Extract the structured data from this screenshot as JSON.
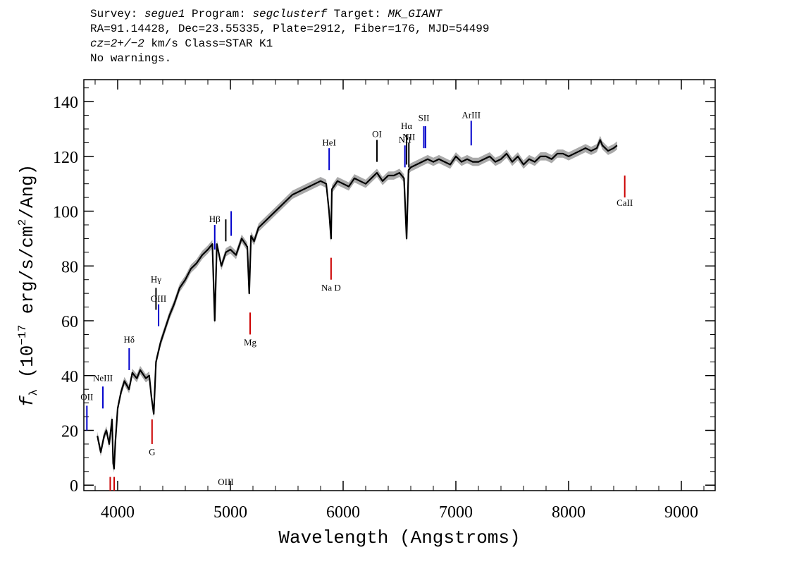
{
  "header": {
    "line1": {
      "survey_label": "Survey: ",
      "survey": "segue1",
      "program_label": " Program: ",
      "program": "segclusterf",
      "target_label": " Target: ",
      "target": "MK_GIANT"
    },
    "line2": "RA=91.14428, Dec=23.55335, Plate=2912, Fiber=176, MJD=54499",
    "line3": {
      "cz": "cz=2+/−2",
      "rest": " km/s Class=STAR K1"
    },
    "line4": "No warnings."
  },
  "chart_data": {
    "type": "line",
    "xlabel": "Wavelength (Angstroms)",
    "ylabel": "f_λ (10^-17 erg/s/cm^2/Ang)",
    "ylabel_parts": {
      "f": "f",
      "sub": "λ",
      "a": " (10",
      "exp": "−17",
      "b": " erg/s/cm",
      "exp2": "2",
      "c": "/Ang)"
    },
    "xlim": [
      3700,
      9300
    ],
    "ylim": [
      -2,
      148
    ],
    "xticks": [
      4000,
      5000,
      6000,
      7000,
      8000,
      9000
    ],
    "yticks": [
      0,
      20,
      40,
      60,
      80,
      100,
      120,
      140
    ],
    "series": [
      {
        "color": "#000000",
        "error_band_color": "#aaaaaa",
        "x": [
          3820,
          3850,
          3880,
          3900,
          3925,
          3950,
          3960,
          3968,
          3980,
          4000,
          4030,
          4060,
          4101,
          4130,
          4170,
          4200,
          4250,
          4280,
          4300,
          4320,
          4340,
          4380,
          4420,
          4460,
          4500,
          4550,
          4600,
          4650,
          4700,
          4750,
          4800,
          4840,
          4861,
          4880,
          4920,
          4960,
          5000,
          5050,
          5100,
          5150,
          5167,
          5183,
          5210,
          5250,
          5300,
          5350,
          5400,
          5450,
          5500,
          5550,
          5600,
          5650,
          5700,
          5750,
          5800,
          5850,
          5875,
          5893,
          5900,
          5950,
          6000,
          6050,
          6100,
          6150,
          6200,
          6250,
          6300,
          6350,
          6400,
          6450,
          6500,
          6540,
          6563,
          6580,
          6600,
          6650,
          6700,
          6750,
          6800,
          6850,
          6900,
          6950,
          7000,
          7050,
          7100,
          7150,
          7200,
          7250,
          7300,
          7350,
          7400,
          7450,
          7500,
          7550,
          7600,
          7650,
          7700,
          7750,
          7800,
          7850,
          7900,
          7950,
          8000,
          8050,
          8100,
          8150,
          8200,
          8250,
          8280,
          8300,
          8350,
          8400,
          8430
        ],
        "y": [
          18,
          12,
          18,
          20,
          15,
          24,
          8,
          6,
          16,
          28,
          34,
          38,
          35,
          41,
          39,
          42,
          39,
          40,
          32,
          26,
          45,
          52,
          57,
          62,
          66,
          72,
          75,
          79,
          81,
          84,
          86,
          88,
          60,
          88,
          80,
          85,
          86,
          84,
          90,
          87,
          70,
          91,
          89,
          94,
          96,
          98,
          100,
          102,
          104,
          106,
          107,
          108,
          109,
          110,
          111,
          110,
          100,
          90,
          108,
          111,
          110,
          109,
          112,
          111,
          110,
          112,
          114,
          111,
          113,
          113,
          114,
          112,
          90,
          115,
          116,
          117,
          118,
          119,
          118,
          119,
          118,
          117,
          120,
          118,
          119,
          118,
          118,
          119,
          120,
          118,
          119,
          121,
          118,
          120,
          117,
          119,
          118,
          120,
          120,
          119,
          121,
          121,
          120,
          121,
          122,
          123,
          122,
          123,
          126,
          124,
          122,
          123,
          124
        ]
      }
    ],
    "lines": [
      {
        "label": "OII",
        "wavelength": 3727,
        "color": "#0000cc",
        "ymin": 20,
        "ymax": 29,
        "label_y": 31
      },
      {
        "label": "NeIII",
        "wavelength": 3869,
        "color": "#0000cc",
        "ymin": 28,
        "ymax": 36,
        "label_y": 38
      },
      {
        "label": "Hδ",
        "wavelength": 4102,
        "color": "#0000cc",
        "ymin": 42,
        "ymax": 50,
        "label_y": 52
      },
      {
        "label": "Hγ",
        "wavelength": 4340,
        "color": "#000000",
        "ymin": 64,
        "ymax": 72,
        "label_y": 74
      },
      {
        "label": "OIII",
        "wavelength": 4363,
        "color": "#0000cc",
        "ymin": 58,
        "ymax": 66,
        "label_y": 67
      },
      {
        "label": "Hβ",
        "wavelength": 4861,
        "color": "#0000cc",
        "ymin": 86,
        "ymax": 95,
        "label_y": 96
      },
      {
        "label": "OIII",
        "wavelength": 4959,
        "color": "#000000",
        "ymin": 89,
        "ymax": 97,
        "label_y": 0
      },
      {
        "label": "",
        "wavelength": 5007,
        "color": "#0000cc",
        "ymin": 91,
        "ymax": 100,
        "label_y": 102
      },
      {
        "label": "HeI",
        "wavelength": 5876,
        "color": "#0000cc",
        "ymin": 115,
        "ymax": 123,
        "label_y": 124
      },
      {
        "label": "OI",
        "wavelength": 6300,
        "color": "#000000",
        "ymin": 118,
        "ymax": 126,
        "label_y": 127
      },
      {
        "label": "NII",
        "wavelength": 6548,
        "color": "#0000cc",
        "ymin": 116,
        "ymax": 124,
        "label_y": 125
      },
      {
        "label": "Hα",
        "wavelength": 6563,
        "color": "#000000",
        "ymin": 117,
        "ymax": 128,
        "label_y": 130
      },
      {
        "label": "NII",
        "wavelength": 6583,
        "color": "#000000",
        "ymin": 116,
        "ymax": 125,
        "label_y": 126
      },
      {
        "label": "SII",
        "wavelength": 6716,
        "color": "#0000cc",
        "ymin": 123,
        "ymax": 131,
        "label_y": 133
      },
      {
        "label": "",
        "wavelength": 6731,
        "color": "#0000cc",
        "ymin": 123,
        "ymax": 131,
        "label_y": 0
      },
      {
        "label": "ArIII",
        "wavelength": 7136,
        "color": "#0000cc",
        "ymin": 124,
        "ymax": 133,
        "label_y": 134
      },
      {
        "label": "CaII",
        "wavelength": 8498,
        "color": "#cc0000",
        "ymin": 105,
        "ymax": 113,
        "label_y": 102
      },
      {
        "label": "Na D",
        "wavelength": 5893,
        "color": "#cc0000",
        "ymin": 75,
        "ymax": 83,
        "label_y": 71
      },
      {
        "label": "Mg",
        "wavelength": 5175,
        "color": "#cc0000",
        "ymin": 55,
        "ymax": 63,
        "label_y": 51
      },
      {
        "label": "G",
        "wavelength": 4305,
        "color": "#cc0000",
        "ymin": 15,
        "ymax": 24,
        "label_y": 11
      },
      {
        "label": "",
        "wavelength": 3934,
        "color": "#cc0000",
        "ymin": -2,
        "ymax": 3,
        "label_y": 0
      },
      {
        "label": "",
        "wavelength": 3969,
        "color": "#cc0000",
        "ymin": -2,
        "ymax": 3,
        "label_y": 0
      }
    ]
  }
}
